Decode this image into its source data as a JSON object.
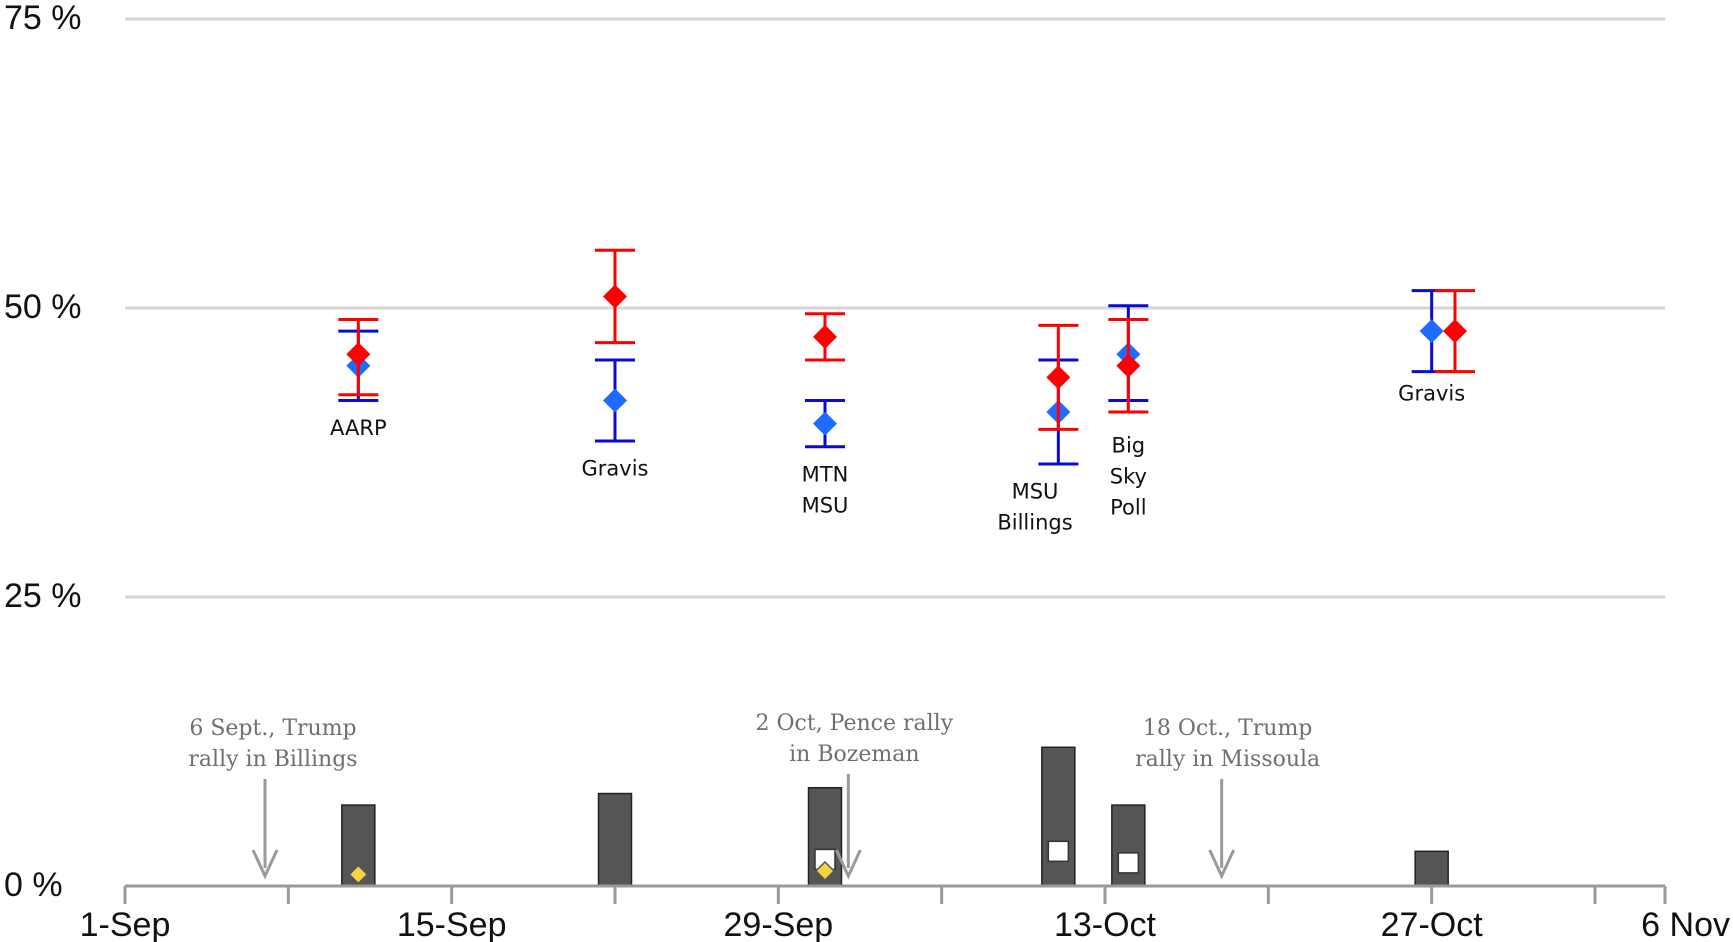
{
  "chart_data": {
    "type": "scatter",
    "title": "",
    "xlabel": "",
    "ylabel": "",
    "x_domain": [
      "2020-09-01",
      "2020-11-06"
    ],
    "y_range": [
      0,
      75
    ],
    "grid": true,
    "y_ticks": [
      {
        "value": 0,
        "label": "0 %"
      },
      {
        "value": 25,
        "label": "25 %"
      },
      {
        "value": 50,
        "label": "50 %"
      },
      {
        "value": 75,
        "label": "75 %"
      }
    ],
    "x_ticks": [
      {
        "date": "2020-09-01",
        "label": "1-Sep"
      },
      {
        "date": "2020-09-15",
        "label": "15-Sep"
      },
      {
        "date": "2020-09-29",
        "label": "29-Sep"
      },
      {
        "date": "2020-10-13",
        "label": "13-Oct"
      },
      {
        "date": "2020-10-27",
        "label": "27-Oct"
      },
      {
        "date": "2020-11-06",
        "label": "6 Nov"
      }
    ],
    "minor_tick_dates": [
      "2020-09-08",
      "2020-09-22",
      "2020-10-06",
      "2020-10-20",
      "2020-11-03"
    ],
    "series": [
      {
        "color": "#1e6cff",
        "error_color": "#0a0ad0",
        "points": [
          {
            "date": "2020-09-11",
            "value": 45,
            "low": 42,
            "high": 48
          },
          {
            "date": "2020-09-22",
            "value": 42,
            "low": 38.5,
            "high": 45.5
          },
          {
            "date": "2020-10-01",
            "value": 40,
            "low": 38,
            "high": 42
          },
          {
            "date": "2020-10-11",
            "value": 41,
            "low": 36.5,
            "high": 45.5
          },
          {
            "date": "2020-10-14",
            "value": 46,
            "low": 42,
            "high": 50.2
          },
          {
            "date": "2020-10-27",
            "value": 48,
            "low": 44.5,
            "high": 51.5
          }
        ]
      },
      {
        "color": "#ff0000",
        "error_color": "#ff0000",
        "points": [
          {
            "date": "2020-09-11",
            "value": 46,
            "low": 42.5,
            "high": 49
          },
          {
            "date": "2020-09-22",
            "value": 51,
            "low": 47,
            "high": 55
          },
          {
            "date": "2020-10-01",
            "value": 47.5,
            "low": 45.5,
            "high": 49.5
          },
          {
            "date": "2020-10-11",
            "value": 44,
            "low": 39.5,
            "high": 48.5
          },
          {
            "date": "2020-10-14",
            "value": 45,
            "low": 41,
            "high": 49
          },
          {
            "date": "2020-10-28",
            "value": 48,
            "low": 44.5,
            "high": 51.5
          }
        ]
      }
    ],
    "poll_labels": [
      {
        "date": "2020-09-11",
        "value": 39,
        "lines": [
          "AARP"
        ]
      },
      {
        "date": "2020-09-22",
        "value": 35.5,
        "lines": [
          "Gravis"
        ]
      },
      {
        "date": "2020-10-01",
        "value": 35,
        "lines": [
          "MTN",
          "MSU"
        ]
      },
      {
        "date": "2020-10-10",
        "value": 33.5,
        "lines": [
          "MSU",
          "Billings"
        ]
      },
      {
        "date": "2020-10-14",
        "value": 37.5,
        "lines": [
          "Big",
          "Sky",
          "Poll"
        ]
      },
      {
        "date": "2020-10-27",
        "value": 42,
        "lines": [
          "Gravis"
        ]
      }
    ],
    "bars": [
      {
        "date": "2020-09-11",
        "value": 7
      },
      {
        "date": "2020-09-22",
        "value": 8
      },
      {
        "date": "2020-10-01",
        "value": 8.5
      },
      {
        "date": "2020-10-11",
        "value": 12
      },
      {
        "date": "2020-10-14",
        "value": 7
      },
      {
        "date": "2020-10-27",
        "value": 3
      }
    ],
    "bar_color": "#555555",
    "bar_markers": [
      {
        "date": "2020-09-11",
        "value": 1,
        "shape": "diamond",
        "color": "#f5d442"
      },
      {
        "date": "2020-10-01",
        "value": 2.3,
        "shape": "square",
        "color": "#ffffff"
      },
      {
        "date": "2020-10-01",
        "value": 1.3,
        "shape": "diamond",
        "color": "#f5d442"
      },
      {
        "date": "2020-10-11",
        "value": 3,
        "shape": "square",
        "color": "#ffffff"
      },
      {
        "date": "2020-10-14",
        "value": 2,
        "shape": "square",
        "color": "#ffffff"
      }
    ],
    "annotations": [
      {
        "date": "2020-09-07",
        "lines": [
          "6 Sept., Trump",
          "rally in  Billings"
        ]
      },
      {
        "date": "2020-10-02",
        "lines": [
          "2 Oct, Pence rally",
          "in Bozeman"
        ]
      },
      {
        "date": "2020-10-18",
        "lines": [
          "18 Oct., Trump",
          "rally in  Missoula"
        ]
      }
    ]
  }
}
